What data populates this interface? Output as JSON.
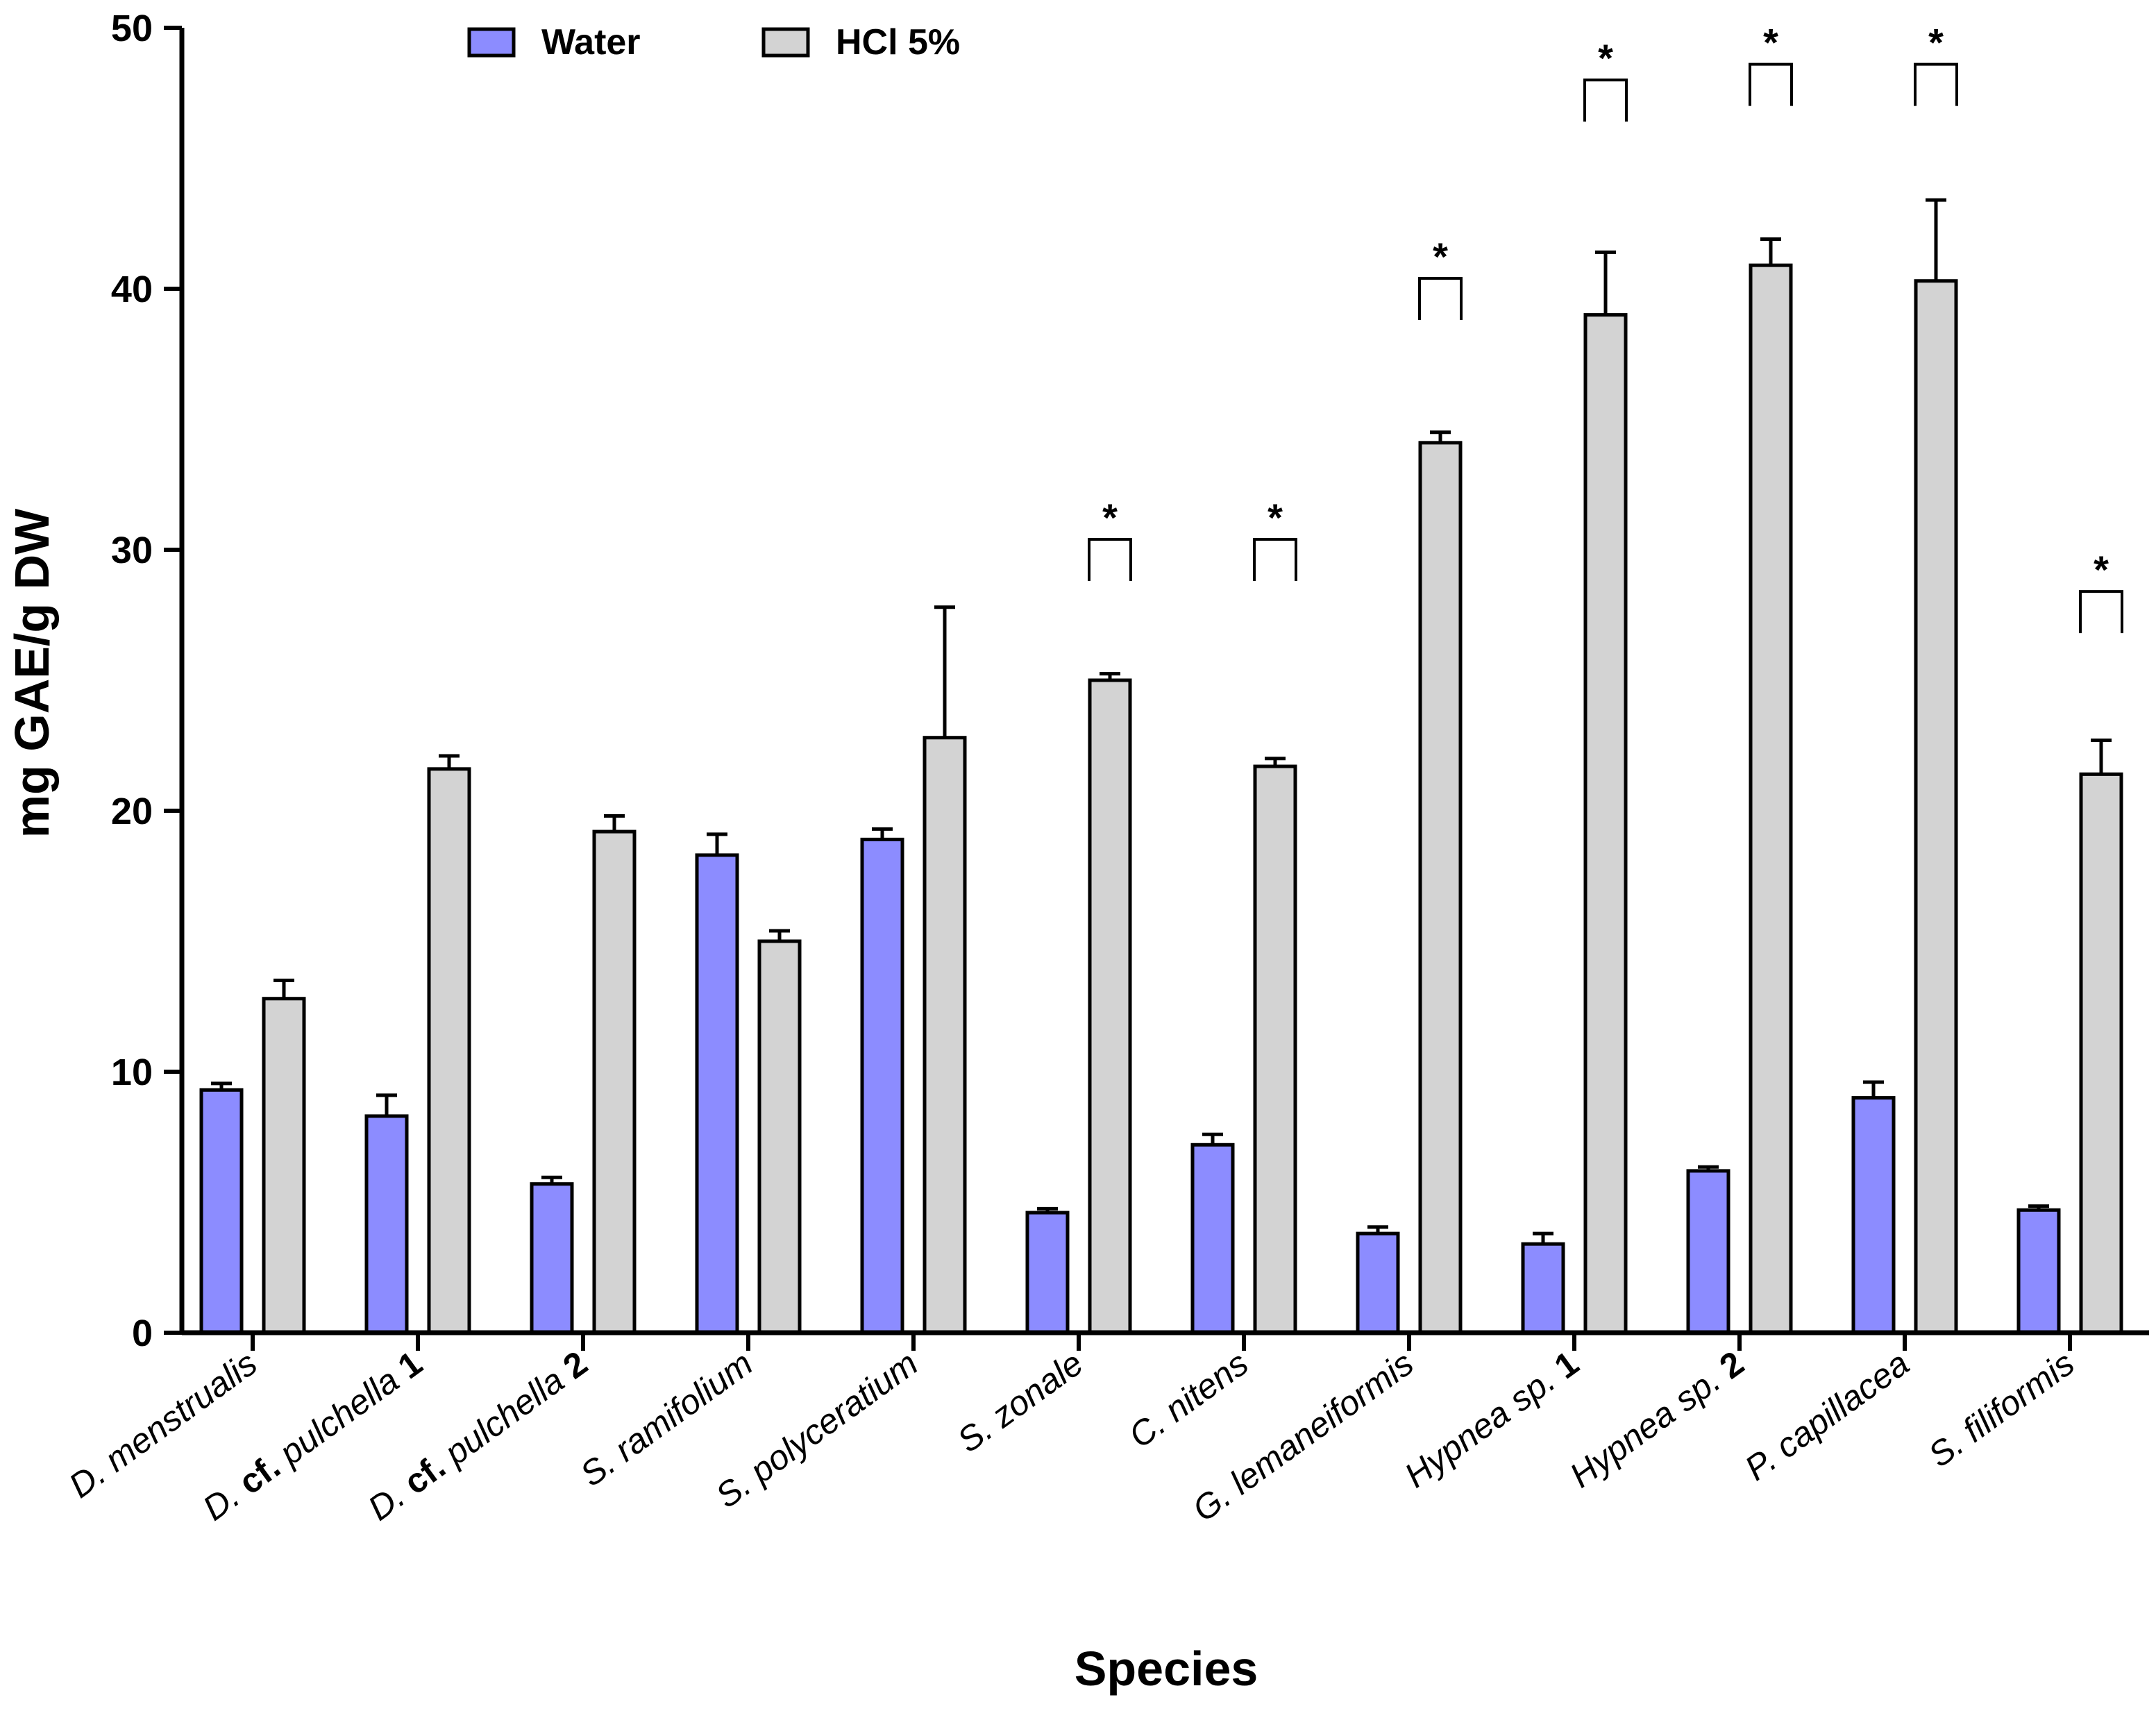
{
  "chart_data": {
    "type": "bar",
    "ylabel": "mg GAE/g DW",
    "xlabel": "Species",
    "ylim": [
      0,
      50
    ],
    "yticks": [
      0,
      10,
      20,
      30,
      40,
      50
    ],
    "legend_position": "top-left",
    "categories": [
      {
        "parts": [
          {
            "t": "D. menstrualis",
            "b": false
          }
        ]
      },
      {
        "parts": [
          {
            "t": "D. ",
            "b": false
          },
          {
            "t": "cf.",
            "b": true
          },
          {
            "t": " pulchella ",
            "b": false
          },
          {
            "t": "1",
            "b": true
          }
        ]
      },
      {
        "parts": [
          {
            "t": "D. ",
            "b": false
          },
          {
            "t": "cf.",
            "b": true
          },
          {
            "t": " pulchella ",
            "b": false
          },
          {
            "t": "2",
            "b": true
          }
        ]
      },
      {
        "parts": [
          {
            "t": "S. ramifolium",
            "b": false
          }
        ]
      },
      {
        "parts": [
          {
            "t": "S. polyceratium",
            "b": false
          }
        ]
      },
      {
        "parts": [
          {
            "t": "S. zonale",
            "b": false
          }
        ]
      },
      {
        "parts": [
          {
            "t": "C. nitens",
            "b": false
          }
        ]
      },
      {
        "parts": [
          {
            "t": "G. lemaneiformis",
            "b": false
          }
        ]
      },
      {
        "parts": [
          {
            "t": "Hypnea sp. ",
            "b": false
          },
          {
            "t": "1",
            "b": true
          }
        ]
      },
      {
        "parts": [
          {
            "t": "Hypnea sp. ",
            "b": false
          },
          {
            "t": "2",
            "b": true
          }
        ]
      },
      {
        "parts": [
          {
            "t": "P. capillacea",
            "b": false
          }
        ]
      },
      {
        "parts": [
          {
            "t": "S. filiformis",
            "b": false
          }
        ]
      }
    ],
    "series": [
      {
        "name": "Water",
        "color": "#8C8CFF",
        "values": [
          9.3,
          8.3,
          5.7,
          18.3,
          18.9,
          4.6,
          7.2,
          3.8,
          3.4,
          6.2,
          9.0,
          4.7
        ],
        "errors": [
          0.25,
          0.8,
          0.25,
          0.8,
          0.4,
          0.15,
          0.4,
          0.25,
          0.4,
          0.15,
          0.6,
          0.15
        ]
      },
      {
        "name": "HCl 5%",
        "color": "#D3D3D3",
        "values": [
          12.8,
          21.6,
          19.2,
          15.0,
          22.8,
          25.0,
          21.7,
          34.1,
          39.0,
          40.9,
          40.3,
          21.4
        ],
        "errors": [
          0.7,
          0.5,
          0.6,
          0.4,
          5.0,
          0.25,
          0.3,
          0.4,
          2.4,
          1.0,
          3.1,
          1.3
        ]
      }
    ],
    "significance": {
      "marker": "*",
      "categories": [
        5,
        6,
        7,
        8,
        9,
        10,
        11
      ],
      "bracket_top": [
        30.4,
        30.4,
        40.4,
        48.0,
        48.6,
        48.6,
        28.4
      ]
    }
  }
}
